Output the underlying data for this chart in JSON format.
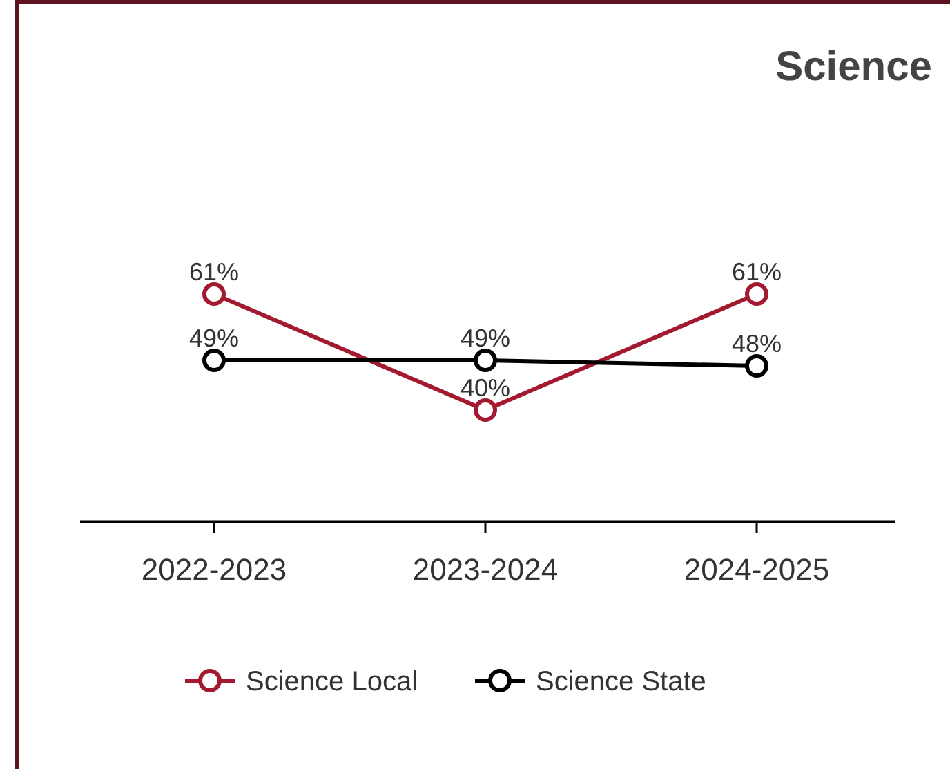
{
  "chart_data": {
    "type": "line",
    "title": "Science",
    "categories": [
      "2022-2023",
      "2023-2024",
      "2024-2025"
    ],
    "series": [
      {
        "name": "Science Local",
        "color": "#a3192f",
        "values": [
          61,
          40,
          61
        ],
        "value_labels": [
          "61%",
          "40%",
          "61%"
        ]
      },
      {
        "name": "Science State",
        "color": "#000000",
        "values": [
          49,
          49,
          48
        ],
        "value_labels": [
          "49%",
          "49%",
          "48%"
        ]
      }
    ],
    "legend": "bottom",
    "marker": "circle"
  }
}
